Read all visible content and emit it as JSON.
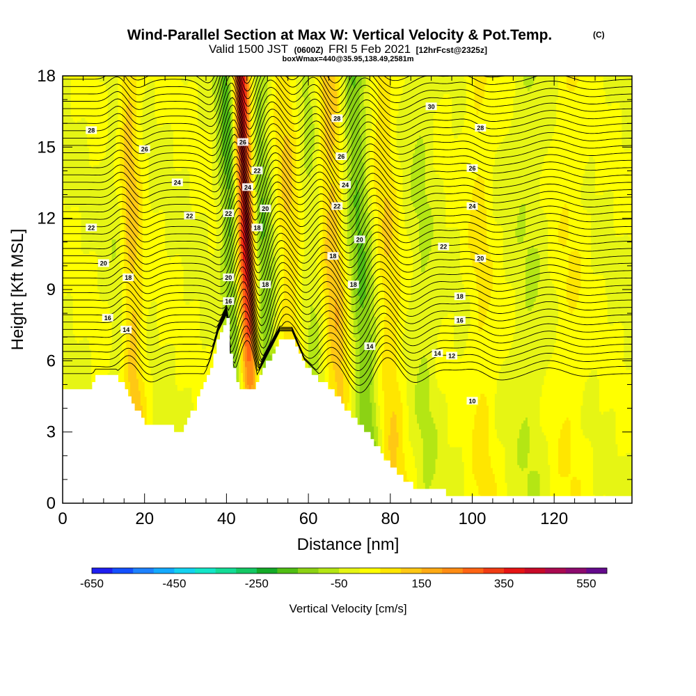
{
  "chart_data": {
    "type": "heatmap",
    "title": "Wind-Parallel Section at Max W: Vertical Velocity & Pot.Temp.",
    "title_note": "(C)",
    "subtitle_valid": "Valid 1500 JST",
    "subtitle_utc": "(0600Z)",
    "subtitle_date": "FRI 5 Feb 2021",
    "subtitle_fcst": "[12hrFcst@2325z]",
    "subtitle_box": "boxWmax=440@35.95,138.49,2581m",
    "xlabel": "Distance [nm]",
    "ylabel": "Height [Kft MSL]",
    "xlim": [
      0,
      139
    ],
    "ylim": [
      0,
      18
    ],
    "x_ticks": [
      "0",
      "20",
      "40",
      "60",
      "80",
      "100",
      "120"
    ],
    "y_ticks": [
      "0",
      "3",
      "6",
      "9",
      "12",
      "15",
      "18"
    ],
    "colorbar": {
      "label": "Vertical Velocity [cm/s]",
      "tick_labels": [
        "-650",
        "-450",
        "-250",
        "-50",
        "150",
        "350",
        "550"
      ],
      "colors": [
        "#1e1ef0",
        "#1450ff",
        "#1e82ff",
        "#14aaff",
        "#14d2f0",
        "#14e6c8",
        "#14dc96",
        "#14c864",
        "#14aa28",
        "#50be14",
        "#8cd214",
        "#b4e614",
        "#e6f514",
        "#ffff00",
        "#ffe600",
        "#ffc814",
        "#ffaa14",
        "#ff8c14",
        "#ff6414",
        "#f03c14",
        "#e61414",
        "#c80a28",
        "#aa0a50",
        "#8c0a6e",
        "#640a8c"
      ]
    },
    "terrain": {
      "x": [
        0,
        6,
        8,
        13,
        18,
        20,
        26,
        28,
        32,
        36,
        38,
        40,
        41,
        43,
        45,
        47,
        50,
        53,
        56,
        59,
        62,
        66,
        70,
        74,
        78,
        82,
        86,
        90,
        94,
        100,
        110,
        120,
        130,
        139
      ],
      "y": [
        4.8,
        4.8,
        5.4,
        5.4,
        3.9,
        3.3,
        3.3,
        2.9,
        4.0,
        5.8,
        7.0,
        7.7,
        6.0,
        4.8,
        4.8,
        5.0,
        6.0,
        7.0,
        7.0,
        5.8,
        5.3,
        4.6,
        3.8,
        3.0,
        2.0,
        1.2,
        0.6,
        0.6,
        0.4,
        0.4,
        0.4,
        0.4,
        0.4,
        0.4
      ]
    },
    "w_bands": [
      {
        "x": 42.0,
        "w": -220,
        "width": 2.6,
        "tilt": -3.0
      },
      {
        "x": 45.0,
        "w": 500,
        "width": 2.4,
        "tilt": -2.6
      },
      {
        "x": 48.8,
        "w": -160,
        "width": 3.2,
        "tilt": -4.0
      },
      {
        "x": 17.0,
        "w": 120,
        "width": 2.6,
        "tilt": -2.0
      },
      {
        "x": 13.5,
        "w": -40,
        "width": 2.0,
        "tilt": -1.5
      },
      {
        "x": 55.5,
        "w": 100,
        "width": 3.0,
        "tilt": -2.5
      },
      {
        "x": 61.0,
        "w": -60,
        "width": 2.5,
        "tilt": -2.5
      },
      {
        "x": 66.5,
        "w": 130,
        "width": 3.0,
        "tilt": -3.0
      },
      {
        "x": 73.0,
        "w": -150,
        "width": 3.0,
        "tilt": -4.0
      },
      {
        "x": 79.5,
        "w": 90,
        "width": 3.0,
        "tilt": -3.0
      },
      {
        "x": 88.0,
        "w": -50,
        "width": 3.0,
        "tilt": -2.0
      },
      {
        "x": 102.0,
        "w": 60,
        "width": 3.0,
        "tilt": -1.5
      },
      {
        "x": 114.0,
        "w": -40,
        "width": 4.0,
        "tilt": 0.0
      },
      {
        "x": 124.0,
        "w": 40,
        "width": 4.0,
        "tilt": 1.0
      }
    ],
    "theta_levels": [
      10,
      12,
      14,
      16,
      18,
      20,
      22,
      24,
      26,
      28,
      30
    ],
    "theta_labels": [
      {
        "text": "30",
        "x": 90,
        "y": 16.7
      },
      {
        "text": "28",
        "x": 7,
        "y": 15.7
      },
      {
        "text": "28",
        "x": 67,
        "y": 16.2
      },
      {
        "text": "28",
        "x": 102,
        "y": 15.8
      },
      {
        "text": "26",
        "x": 20,
        "y": 14.9
      },
      {
        "text": "26",
        "x": 44,
        "y": 15.2
      },
      {
        "text": "26",
        "x": 68,
        "y": 14.6
      },
      {
        "text": "26",
        "x": 100,
        "y": 14.1
      },
      {
        "text": "24",
        "x": 28,
        "y": 13.5
      },
      {
        "text": "24",
        "x": 45.2,
        "y": 13.3
      },
      {
        "text": "24",
        "x": 69,
        "y": 13.4
      },
      {
        "text": "24",
        "x": 100,
        "y": 12.5
      },
      {
        "text": "22",
        "x": 47.5,
        "y": 14.0
      },
      {
        "text": "22",
        "x": 31,
        "y": 12.1
      },
      {
        "text": "22",
        "x": 67,
        "y": 12.5
      },
      {
        "text": "22",
        "x": 7,
        "y": 11.6
      },
      {
        "text": "22",
        "x": 93,
        "y": 10.8
      },
      {
        "text": "20",
        "x": 49.5,
        "y": 12.4
      },
      {
        "text": "20",
        "x": 72.5,
        "y": 11.1
      },
      {
        "text": "20",
        "x": 10,
        "y": 10.1
      },
      {
        "text": "20",
        "x": 102,
        "y": 10.3
      },
      {
        "text": "20",
        "x": 40.5,
        "y": 9.5
      },
      {
        "text": "18",
        "x": 47.5,
        "y": 11.6
      },
      {
        "text": "18",
        "x": 66,
        "y": 10.4
      },
      {
        "text": "18",
        "x": 16,
        "y": 9.5
      },
      {
        "text": "18",
        "x": 49.5,
        "y": 9.2
      },
      {
        "text": "18",
        "x": 71,
        "y": 9.2
      },
      {
        "text": "18",
        "x": 97,
        "y": 8.7
      },
      {
        "text": "16",
        "x": 40.5,
        "y": 8.5
      },
      {
        "text": "16",
        "x": 11,
        "y": 7.8
      },
      {
        "text": "16",
        "x": 97,
        "y": 7.7
      },
      {
        "text": "14",
        "x": 15.5,
        "y": 7.3
      },
      {
        "text": "14",
        "x": 75,
        "y": 6.6
      },
      {
        "text": "14",
        "x": 91.5,
        "y": 6.3
      },
      {
        "text": "12",
        "x": 95,
        "y": 6.2
      },
      {
        "text": "10",
        "x": 100,
        "y": 4.3
      },
      {
        "text": "22",
        "x": 40.5,
        "y": 12.2
      }
    ]
  }
}
